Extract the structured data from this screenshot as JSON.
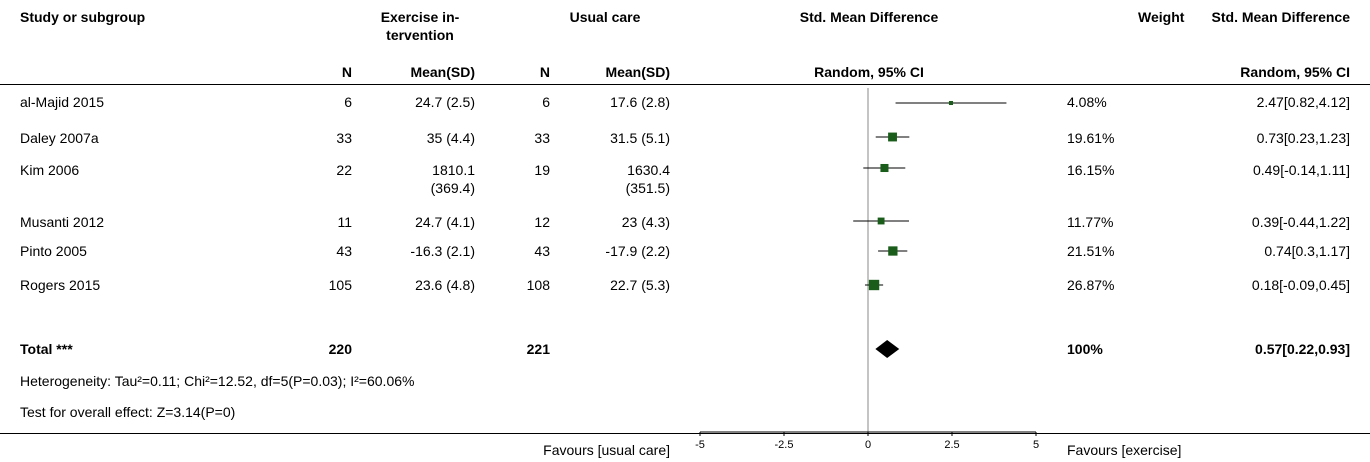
{
  "header": {
    "study": "Study or subgroup",
    "exercise": "Exercise in-\ntervention",
    "usual": "Usual care",
    "smd": "Std. Mean Difference",
    "weight": "Weight",
    "smd2": "Std. Mean Difference"
  },
  "subheader": {
    "n1": "N",
    "mean1": "Mean(SD)",
    "n2": "N",
    "mean2": "Mean(SD)",
    "method": "Random, 95% CI",
    "method2": "Random, 95% CI"
  },
  "rows": [
    {
      "study": "al-Majid 2015",
      "n1": "6",
      "mean1": "24.7 (2.5)",
      "n2": "6",
      "mean2": "17.6 (2.8)",
      "weight": "4.08%",
      "ci": "2.47[0.82,4.12]"
    },
    {
      "study": "Daley 2007a",
      "n1": "33",
      "mean1": "35 (4.4)",
      "n2": "33",
      "mean2": "31.5 (5.1)",
      "weight": "19.61%",
      "ci": "0.73[0.23,1.23]"
    },
    {
      "study": "Kim 2006",
      "n1": "22",
      "mean1": "1810.1\n(369.4)",
      "n2": "19",
      "mean2": "1630.4\n(351.5)",
      "weight": "16.15%",
      "ci": "0.49[-0.14,1.11]"
    },
    {
      "study": "Musanti 2012",
      "n1": "11",
      "mean1": "24.7 (4.1)",
      "n2": "12",
      "mean2": "23 (4.3)",
      "weight": "11.77%",
      "ci": "0.39[-0.44,1.22]"
    },
    {
      "study": "Pinto 2005",
      "n1": "43",
      "mean1": "-16.3 (2.1)",
      "n2": "43",
      "mean2": "-17.9 (2.2)",
      "weight": "21.51%",
      "ci": "0.74[0.3,1.17]"
    },
    {
      "study": "Rogers 2015",
      "n1": "105",
      "mean1": "23.6 (4.8)",
      "n2": "108",
      "mean2": "22.7 (5.3)",
      "weight": "26.87%",
      "ci": "0.18[-0.09,0.45]"
    }
  ],
  "total": {
    "label": "Total ***",
    "n1": "220",
    "n2": "221",
    "weight": "100%",
    "ci": "0.57[0.22,0.93]"
  },
  "heterogeneity": "Heterogeneity: Tau²=0.11; Chi²=12.52, df=5(P=0.03); I²=60.06%",
  "overall": "Test for overall effect: Z=3.14(P=0)",
  "footer": {
    "favours_left": "Favours [usual care]",
    "favours_right": "Favours [exercise]"
  },
  "colors": {
    "study_marker": "#1a5c1a",
    "line": "#000000",
    "total_marker": "#000000"
  },
  "chart_data": {
    "type": "forest",
    "x_range": [
      -5,
      5
    ],
    "x_ticks": [
      "-5",
      "-2.5",
      "0",
      "2.5",
      "5"
    ],
    "tick_values": [
      -5,
      -2.5,
      0,
      2.5,
      5
    ],
    "null_value": 0,
    "studies": [
      {
        "study": "al-Majid 2015",
        "estimate": 2.47,
        "lower": 0.82,
        "upper": 4.12,
        "weight": 4.08
      },
      {
        "study": "Daley 2007a",
        "estimate": 0.73,
        "lower": 0.23,
        "upper": 1.23,
        "weight": 19.61
      },
      {
        "study": "Kim 2006",
        "estimate": 0.49,
        "lower": -0.14,
        "upper": 1.11,
        "weight": 16.15
      },
      {
        "study": "Musanti 2012",
        "estimate": 0.39,
        "lower": -0.44,
        "upper": 1.22,
        "weight": 11.77
      },
      {
        "study": "Pinto 2005",
        "estimate": 0.74,
        "lower": 0.3,
        "upper": 1.17,
        "weight": 21.51
      },
      {
        "study": "Rogers 2015",
        "estimate": 0.18,
        "lower": -0.09,
        "upper": 0.45,
        "weight": 26.87
      }
    ],
    "pooled": {
      "estimate": 0.57,
      "lower": 0.22,
      "upper": 0.93,
      "weight": 100
    }
  }
}
